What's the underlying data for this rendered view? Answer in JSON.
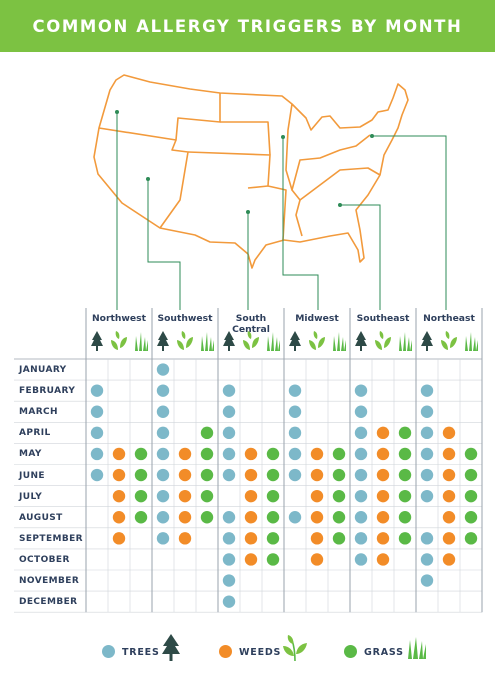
{
  "title": "COMMON ALLERGY TRIGGERS BY MONTH",
  "colors": {
    "banner": "#7cc242",
    "trees": "#7db8c9",
    "weeds": "#f28c28",
    "grass": "#5ab946",
    "map_line": "#f29a3c",
    "leader": "#2e8b57",
    "text": "#2e3f5c",
    "icon": "#2e4a47"
  },
  "legend": [
    {
      "label": "TREES",
      "key": "trees",
      "icon": "tree-icon"
    },
    {
      "label": "WEEDS",
      "key": "weeds",
      "icon": "weed-icon"
    },
    {
      "label": "GRASS",
      "key": "grass",
      "icon": "grass-icon"
    }
  ],
  "chart_data": {
    "type": "table",
    "months": [
      "JANUARY",
      "FEBRUARY",
      "MARCH",
      "APRIL",
      "MAY",
      "JUNE",
      "JULY",
      "AUGUST",
      "SEPTEMBER",
      "OCTOBER",
      "NOVEMBER",
      "DECEMBER"
    ],
    "regions": [
      "Northwest",
      "Southwest",
      "South Central",
      "Midwest",
      "Southeast",
      "Northeast"
    ],
    "categories": [
      "trees",
      "weeds",
      "grass"
    ],
    "presence": {
      "Northwest": [
        [
          0,
          0,
          0
        ],
        [
          1,
          0,
          0
        ],
        [
          1,
          0,
          0
        ],
        [
          1,
          0,
          0
        ],
        [
          1,
          1,
          1
        ],
        [
          1,
          1,
          1
        ],
        [
          0,
          1,
          1
        ],
        [
          0,
          1,
          1
        ],
        [
          0,
          1,
          0
        ],
        [
          0,
          0,
          0
        ],
        [
          0,
          0,
          0
        ],
        [
          0,
          0,
          0
        ]
      ],
      "Southwest": [
        [
          1,
          0,
          0
        ],
        [
          1,
          0,
          0
        ],
        [
          1,
          0,
          0
        ],
        [
          1,
          0,
          1
        ],
        [
          1,
          1,
          1
        ],
        [
          1,
          1,
          1
        ],
        [
          1,
          1,
          1
        ],
        [
          1,
          1,
          1
        ],
        [
          1,
          1,
          0
        ],
        [
          0,
          0,
          0
        ],
        [
          0,
          0,
          0
        ],
        [
          0,
          0,
          0
        ]
      ],
      "South Central": [
        [
          0,
          0,
          0
        ],
        [
          1,
          0,
          0
        ],
        [
          1,
          0,
          0
        ],
        [
          1,
          0,
          0
        ],
        [
          1,
          1,
          1
        ],
        [
          1,
          1,
          1
        ],
        [
          0,
          1,
          1
        ],
        [
          1,
          1,
          1
        ],
        [
          1,
          1,
          1
        ],
        [
          1,
          1,
          1
        ],
        [
          1,
          0,
          0
        ],
        [
          1,
          0,
          0
        ]
      ],
      "Midwest": [
        [
          0,
          0,
          0
        ],
        [
          1,
          0,
          0
        ],
        [
          1,
          0,
          0
        ],
        [
          1,
          0,
          0
        ],
        [
          1,
          1,
          1
        ],
        [
          1,
          1,
          1
        ],
        [
          0,
          1,
          1
        ],
        [
          1,
          1,
          1
        ],
        [
          0,
          1,
          1
        ],
        [
          0,
          1,
          0
        ],
        [
          0,
          0,
          0
        ],
        [
          0,
          0,
          0
        ]
      ],
      "Southeast": [
        [
          0,
          0,
          0
        ],
        [
          1,
          0,
          0
        ],
        [
          1,
          0,
          0
        ],
        [
          1,
          1,
          1
        ],
        [
          1,
          1,
          1
        ],
        [
          1,
          1,
          1
        ],
        [
          1,
          1,
          1
        ],
        [
          1,
          1,
          1
        ],
        [
          1,
          1,
          1
        ],
        [
          1,
          1,
          0
        ],
        [
          0,
          0,
          0
        ],
        [
          0,
          0,
          0
        ]
      ],
      "Northeast": [
        [
          0,
          0,
          0
        ],
        [
          1,
          0,
          0
        ],
        [
          1,
          0,
          0
        ],
        [
          1,
          1,
          0
        ],
        [
          1,
          1,
          1
        ],
        [
          1,
          1,
          1
        ],
        [
          1,
          1,
          1
        ],
        [
          0,
          1,
          1
        ],
        [
          1,
          1,
          1
        ],
        [
          1,
          1,
          0
        ],
        [
          1,
          0,
          0
        ],
        [
          0,
          0,
          0
        ]
      ]
    }
  }
}
